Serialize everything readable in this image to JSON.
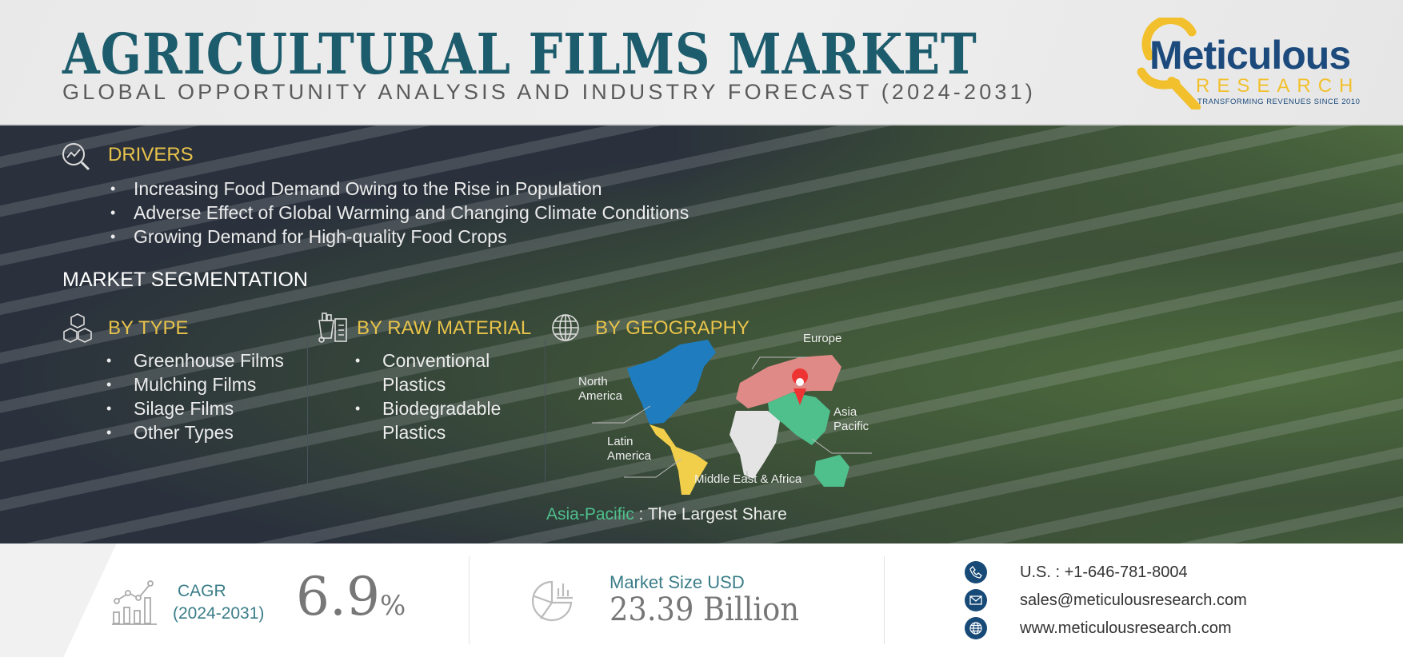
{
  "header": {
    "title": "AGRICULTURAL FILMS MARKET",
    "subtitle": "GLOBAL OPPORTUNITY ANALYSIS AND INDUSTRY FORECAST (2024-2031)",
    "logo": {
      "name": "Meticulous",
      "sub": "RESEARCH",
      "tagline": "TRANSFORMING REVENUES SINCE 2010"
    }
  },
  "drivers": {
    "heading": "DRIVERS",
    "items": [
      "Increasing Food Demand Owing to the Rise in Population",
      "Adverse Effect of Global Warming and Changing Climate Conditions",
      "Growing Demand for High-quality Food Crops"
    ]
  },
  "segmentation": {
    "heading": "MARKET SEGMENTATION",
    "by_type": {
      "heading": "BY TYPE",
      "items": [
        "Greenhouse Films",
        "Mulching Films",
        "Silage Films",
        "Other Types"
      ]
    },
    "by_raw_material": {
      "heading": "BY RAW MATERIAL",
      "items": [
        "Conventional Plastics",
        "Biodegradable Plastics"
      ],
      "lines": [
        "Conventional",
        "Plastics",
        "Biodegradable",
        "Plastics"
      ]
    },
    "by_geography": {
      "heading": "BY GEOGRAPHY",
      "regions": {
        "europe": "Europe",
        "north_america_1": "North",
        "north_america_2": "America",
        "asia_1": "Asia",
        "asia_2": "Pacific",
        "latin_1": "Latin",
        "latin_2": "America",
        "mea": "Middle East & Africa"
      },
      "largest_region": "Asia-Pacific",
      "largest_sep": " : ",
      "largest_text": "The Largest Share"
    }
  },
  "stats": {
    "cagr_label": "CAGR",
    "cagr_period": "(2024-2031)",
    "cagr_value": "6.9",
    "cagr_unit": "%",
    "market_label": "Market Size USD",
    "market_value": "23.39 Billion"
  },
  "contact": {
    "phone": "U.S. : +1-646-781-8004",
    "email": "sales@meticulousresearch.com",
    "web": "www.meticulousresearch.com"
  },
  "colors": {
    "title": "#1d5c6c",
    "accent": "#e8c34a",
    "panel": "#2a313c",
    "asia": "#4fbf8c",
    "europe": "#e08a87",
    "north_america": "#1f7dbf",
    "latin_america": "#f2cf4a",
    "mea": "#e4e4e4",
    "contact_icon": "#184a77"
  }
}
